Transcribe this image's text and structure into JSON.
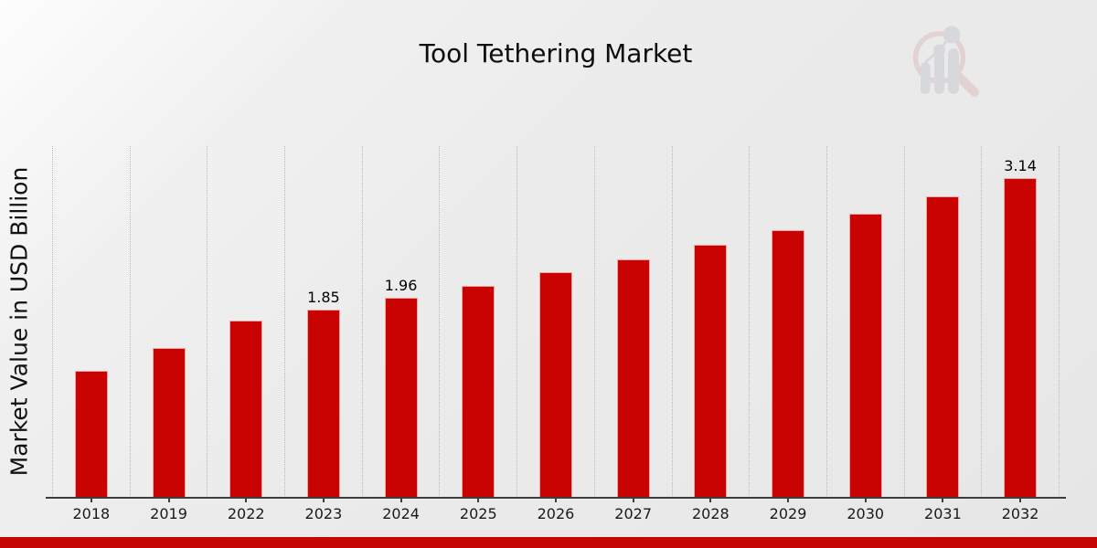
{
  "chart_data": {
    "type": "bar",
    "title": "Tool Tethering Market",
    "xlabel": "",
    "ylabel": "Market Value in USD Billion",
    "categories": [
      "2018",
      "2019",
      "2022",
      "2023",
      "2024",
      "2025",
      "2026",
      "2027",
      "2028",
      "2029",
      "2030",
      "2031",
      "2032"
    ],
    "values": [
      1.25,
      1.47,
      1.74,
      1.85,
      1.96,
      2.08,
      2.21,
      2.34,
      2.48,
      2.63,
      2.79,
      2.96,
      3.14
    ],
    "bar_labels": [
      "",
      "",
      "",
      "1.85",
      "1.96",
      "",
      "",
      "",
      "",
      "",
      "",
      "",
      "3.14"
    ],
    "ylim": [
      0,
      3.45
    ],
    "y_tick_labels": "none",
    "grid": "vertical-dotted-between-categories",
    "legend": "none",
    "bar_color": "#c90301",
    "axis_color": "#3d3d3d",
    "gridline_color": "#b9b9b9"
  },
  "branding": {
    "watermark_icon": "magnifier-bar-chart-logo",
    "banner_color": "#c50404",
    "logo_ring_color": "#dfc0c0",
    "logo_bar_color": "#c9cbd1"
  }
}
